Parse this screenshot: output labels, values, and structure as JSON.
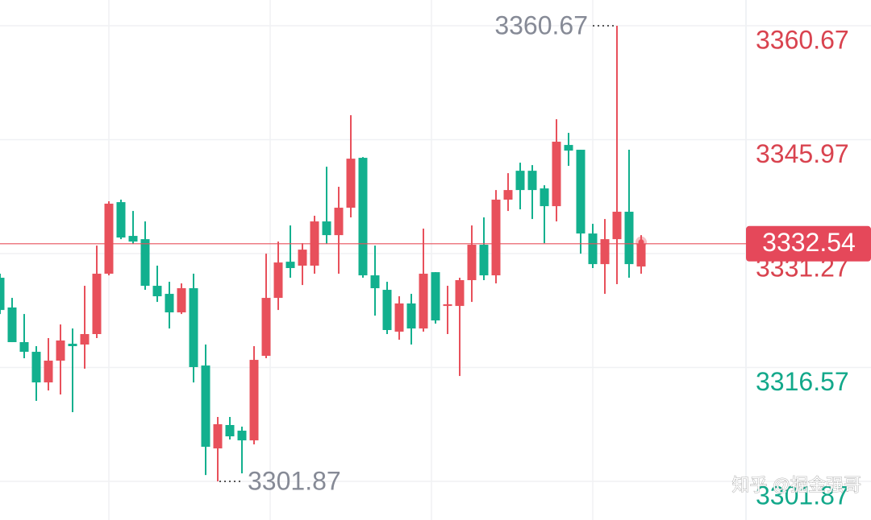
{
  "chart_data": {
    "type": "candlestick",
    "open": [
      3328.15,
      3324.31,
      3319.84,
      3318.59,
      3314.64,
      3317.45,
      3319.63,
      3319.53,
      3320.88,
      3328.67,
      3337.91,
      3333.55,
      3333.13,
      3327.11,
      3326.07,
      3323.68,
      3326.8,
      3316.82,
      3306.12,
      3309.14,
      3308.41,
      3307.16,
      3318.07,
      3325.55,
      3330.22,
      3329.71,
      3329.71,
      3335.42,
      3333.65,
      3337.19,
      3343.63,
      3328.46,
      3326.59,
      3321.19,
      3324.83,
      3321.6,
      3328.87,
      3324.51,
      3324.51,
      3327.84,
      3332.41,
      3328.46,
      3338.23,
      3341.96,
      3341.96,
      3339.68,
      3337.39,
      3345.29,
      3344.67,
      3333.86,
      3329.91,
      3333.13,
      3336.67,
      3329.6
    ],
    "high": [
      3328.67,
      3325.55,
      3323.47,
      3319.32,
      3320.36,
      3322.12,
      3321.6,
      3327.11,
      3332.3,
      3338.02,
      3338.23,
      3336.77,
      3335.42,
      3329.71,
      3327.63,
      3327.42,
      3328.67,
      3319.53,
      3310.18,
      3310.18,
      3308.93,
      3319.32,
      3331.26,
      3332.82,
      3334.9,
      3332.61,
      3336.15,
      3342.48,
      3339.89,
      3349.13,
      3343.73,
      3332.3,
      3327.63,
      3325.76,
      3326.07,
      3334.49,
      3328.87,
      3327.11,
      3328.15,
      3334.9,
      3335.94,
      3339.47,
      3341.65,
      3343.0,
      3342.69,
      3340.09,
      3348.61,
      3346.85,
      3344.67,
      3335.11,
      3335.73,
      3360.67,
      3344.67,
      3333.65
    ],
    "low": [
      3323.47,
      3319.84,
      3317.76,
      3312.26,
      3313.6,
      3313.08,
      3310.8,
      3316.41,
      3320.36,
      3328.46,
      3333.13,
      3332.51,
      3326.59,
      3325.03,
      3321.6,
      3323.47,
      3314.64,
      3302.69,
      3301.87,
      3307.27,
      3302.9,
      3306.64,
      3317.76,
      3323.99,
      3328.15,
      3327.21,
      3328.67,
      3332.51,
      3328.67,
      3335.94,
      3328.15,
      3323.26,
      3320.88,
      3320.15,
      3319.53,
      3321.19,
      3322.23,
      3320.88,
      3315.47,
      3325.03,
      3327.84,
      3327.42,
      3336.77,
      3336.98,
      3335.73,
      3332.61,
      3335.42,
      3342.59,
      3331.26,
      3329.4,
      3326.07,
      3327.32,
      3328.15,
      3328.67
    ],
    "close": [
      3323.99,
      3319.84,
      3318.59,
      3314.64,
      3317.45,
      3320.05,
      3319.32,
      3320.88,
      3328.67,
      3337.71,
      3333.34,
      3332.82,
      3327.11,
      3325.76,
      3323.68,
      3326.8,
      3316.62,
      3306.33,
      3309.24,
      3307.68,
      3307.16,
      3317.55,
      3325.55,
      3330.12,
      3329.4,
      3331.78,
      3335.42,
      3333.65,
      3337.19,
      3343.52,
      3328.46,
      3326.8,
      3321.4,
      3324.83,
      3321.6,
      3328.67,
      3322.64,
      3324.72,
      3327.84,
      3332.41,
      3328.46,
      3338.23,
      3339.47,
      3339.47,
      3339.47,
      3337.39,
      3345.71,
      3344.56,
      3333.86,
      3329.91,
      3333.13,
      3336.67,
      3329.91,
      3332.54
    ],
    "up_color": "#e8505b",
    "down_color": "#12b08e",
    "ylim": [
      3296.88,
      3364.0
    ],
    "yticks": [
      3360.67,
      3345.97,
      3331.27,
      3316.57,
      3301.87
    ],
    "ytick_colors": [
      "#d9434f",
      "#d9434f",
      "#d9434f",
      "#12a88a",
      "#12a88a"
    ],
    "grid": true,
    "watermark": "知乎 @掘金强哥"
  }
}
